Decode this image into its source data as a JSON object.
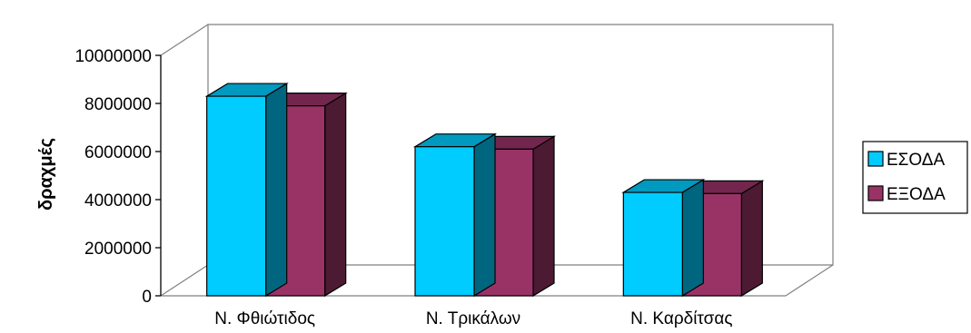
{
  "chart_data": {
    "type": "bar",
    "style": "3d-clustered-column",
    "title": "",
    "xlabel": "",
    "ylabel": "δραχμές",
    "ylim": [
      0,
      10000000
    ],
    "y_ticks": [
      0,
      2000000,
      4000000,
      6000000,
      8000000,
      10000000
    ],
    "y_tick_labels": [
      "0",
      "2000000",
      "4000000",
      "6000000",
      "8000000",
      "10000000"
    ],
    "categories": [
      "Ν. Φθιώτιδος",
      "Ν. Τρικάλων",
      "Ν. Καρδίτσας"
    ],
    "series": [
      {
        "name": "ΕΣΟΔΑ",
        "values": [
          8300000,
          6200000,
          4300000
        ],
        "color": "#00ccff"
      },
      {
        "name": "ΕΞΟΔΑ",
        "values": [
          7900000,
          6100000,
          4250000
        ],
        "color": "#993366"
      }
    ],
    "grid": false,
    "legend": "right"
  }
}
